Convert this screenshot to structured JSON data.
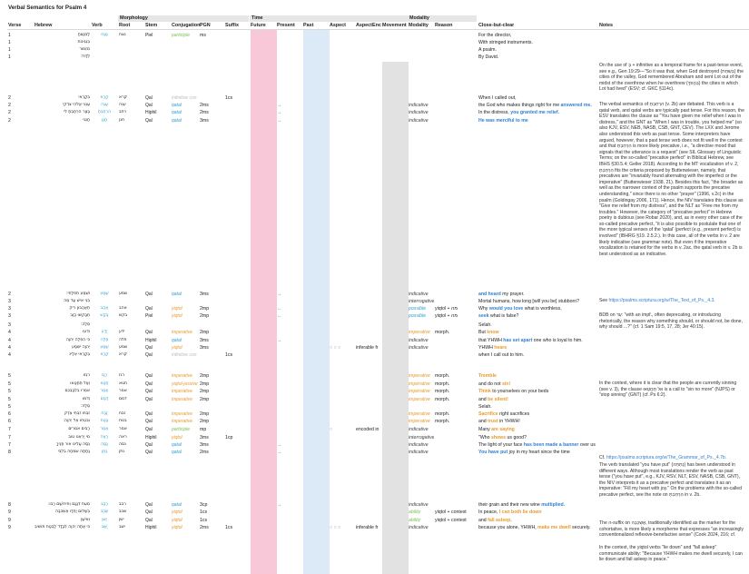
{
  "sheet": {
    "title": "Verbal Semantics for Psalm 4"
  },
  "groups": {
    "morphology": "Morphology",
    "time": "Time",
    "modality": "Modality"
  },
  "headers": {
    "verse": "Verse",
    "hebrew": "Hebrew",
    "verb": "Verb",
    "root": "Root",
    "stem": "Stem",
    "conjugation": "Conjugation",
    "pgn": "PGN",
    "suffix": "Suffix",
    "future": "Future",
    "present": "Present",
    "past": "Past",
    "aspect": "Aspect",
    "aspect_enc": "AspectEnc",
    "movement": "Movement",
    "modality": "Modality",
    "reason": "Reason",
    "close_but_clear": "Close-but-clear",
    "notes": "Notes"
  },
  "colors": {
    "future_col": "#f8c8d8",
    "past_col": "#dce9f7",
    "movement_col": "#e2e2e2",
    "accent_blue": "#2f7fd4",
    "accent_orange": "#e89a2b"
  },
  "rows": [
    {
      "verse": "1",
      "hebrew": "לַמְנַצֵּחַ",
      "verb": "נָצַח",
      "root": "נצח",
      "stem": "Piel",
      "conj": "participle",
      "pgn": "ms",
      "text": "For the director,"
    },
    {
      "verse": "1",
      "hebrew": "בִּנְגִינוֹת",
      "text": "With stringed instruments."
    },
    {
      "verse": "1",
      "hebrew": "מִזְמוֹר",
      "text": "A psalm."
    },
    {
      "verse": "1",
      "hebrew": "לְדָוִד׃",
      "text": "By David."
    },
    {
      "verse": "2",
      "hebrew": "בְּקָרְאִי",
      "verb": "קָרָא",
      "root": "קרא",
      "stem": "Qal",
      "conj": "infinitive con",
      "suffix": "1cs",
      "text": "When I called out,"
    },
    {
      "verse": "2",
      "hebrew": "עֲנֵנִי אֱלֹהֵי צִדְקִי",
      "verb": "עָנָה",
      "root": "ענה",
      "stem": "Qal",
      "conj": "qatal",
      "pgn": "2ms",
      "arrow": "→",
      "modality": "indicative",
      "text_pre": "the God who makes things right for me ",
      "text_hl": "answered me.",
      "hl": "blue"
    },
    {
      "verse": "2",
      "hebrew": "בַּצָּר הִרְחַבְתָּ לִּי",
      "verb": "הִרְחַבְתָּ",
      "root": "רחב",
      "stem": "Hiphil",
      "conj": "qatal",
      "pgn": "2ms",
      "arrow": "→",
      "modality": "indicative",
      "text_pre": "In the distress, ",
      "text_hl": "you granted me relief.",
      "hl": "blue"
    },
    {
      "verse": "2",
      "hebrew": "חָנֵּנִי",
      "verb": "חָנַן",
      "root": "חנן",
      "stem": "Qal",
      "conj": "qatal",
      "pgn": "3ms",
      "arrow": "→",
      "modality": "indicative",
      "text_pre": "",
      "text_hl": "He was merciful to me",
      "hl": "blue"
    },
    {
      "verse": "2",
      "hebrew": "וּשְׁמַע תְּפִלָּתִי׃",
      "verb": "שָׁמַע",
      "root": "שמע",
      "stem": "Qal",
      "conj": "qatal",
      "pgn": "3ms",
      "arrow": "→",
      "modality": "indicative",
      "text_pre": "",
      "text_hl": "and heard",
      "text_post": " my prayer.",
      "hl": "blue"
    },
    {
      "verse": "3",
      "hebrew": "בְּנֵי אִישׁ עַד מֶה",
      "modality": "interrogative",
      "text": "Mortal humans, how long [will you be] stubborn?"
    },
    {
      "verse": "3",
      "hebrew": "תֶּאֱהָבוּן רִיק",
      "verb": "אָהַב",
      "root": "אהב",
      "stem": "Qal",
      "conj": "yiqtol",
      "pgn": "2mp",
      "arrow": "←",
      "modality": "possible",
      "reason": "yiqtol + מה",
      "text_pre": "Why ",
      "text_hl": "would you love",
      "text_post": " what is worthless,",
      "hl": "blue"
    },
    {
      "verse": "3",
      "hebrew": "תְּבַקְשׁוּ כָזָב",
      "verb": "בָּקַשׁ",
      "root": "בקשׁ",
      "stem": "Piel",
      "conj": "yiqtol",
      "pgn": "2mp",
      "arrow": "←",
      "modality": "possible",
      "reason": "yiqtol + מה",
      "text_pre": "",
      "text_hl": "seek",
      "text_post": " what is false?",
      "hl": "blue"
    },
    {
      "verse": "3",
      "hebrew": "סֶלָה׃",
      "text": "Selah."
    },
    {
      "verse": "4",
      "hebrew": "וּדְעוּ",
      "verb": "יָדַע",
      "root": "ידע",
      "stem": "Qal",
      "conj": "imperative",
      "pgn": "2mp",
      "modality": "imperative",
      "reason": "morph.",
      "text_pre": "But ",
      "text_hl": "know",
      "hl": "orange"
    },
    {
      "verse": "4",
      "hebrew": "כִּי הִפְלָה יְהוָה",
      "verb": "פָּלָה",
      "root": "פלה",
      "stem": "Hiphil",
      "conj": "qatal",
      "pgn": "3ms",
      "arrow": "→",
      "modality": "indicative",
      "text_pre": "that YHWH ",
      "text_hl": "has set apart",
      "text_post": " one who is loyal to him.",
      "hl": "blue"
    },
    {
      "verse": "4",
      "hebrew": "יְהוָה יִשְׁמַע",
      "verb": "שָׁמַע",
      "root": "שמע",
      "stem": "Qal",
      "conj": "yiqtol",
      "pgn": "3ms",
      "aspect": "○ ○ ○",
      "aspe": "inferable fr",
      "modality": "indicative",
      "text_pre": "YHWH ",
      "text_hl": "hears",
      "hl": "orange"
    },
    {
      "verse": "4",
      "hebrew": "בְּקָרְאִי אֵלָיו׃",
      "verb": "קָרָא",
      "root": "קרא",
      "stem": "Qal",
      "conj": "infinitive con",
      "suffix": "1cs",
      "text": "when I call out to him."
    },
    {
      "verse": "5",
      "hebrew": "רִגְזוּ",
      "verb": "רָגַז",
      "root": "רגז",
      "stem": "Qal",
      "conj": "imperative",
      "pgn": "2mp",
      "modality": "imperative",
      "reason": "morph.",
      "text_pre": "",
      "text_hl": "Tremble",
      "hl": "orange"
    },
    {
      "verse": "5",
      "hebrew": "וְאַל תֶּחֱטָאוּ",
      "verb": "חָטָא",
      "root": "חטא",
      "stem": "Qal",
      "conj": "yiqtol-jussive",
      "pgn": "2mp",
      "modality": "imperative",
      "reason": "morph.",
      "text_pre": "and do not ",
      "text_hl": "sin!",
      "hl": "orange"
    },
    {
      "verse": "5",
      "hebrew": "אִמְרוּ בִלְבַבְכֶם",
      "verb": "אָמַר",
      "root": "אמר",
      "stem": "Qal",
      "conj": "imperative",
      "pgn": "2mp",
      "modality": "imperative",
      "reason": "morph.",
      "text_pre": "",
      "text_hl": "Think",
      "text_post": " to yourselves on your beds",
      "hl": "orange"
    },
    {
      "verse": "5",
      "hebrew": "וְדֹמּוּ",
      "verb": "דָּמַם",
      "root": "דמם",
      "stem": "Qal",
      "conj": "imperative",
      "pgn": "2mp",
      "modality": "imperative",
      "reason": "morph.",
      "text_pre": "and ",
      "text_hl": "be silent!",
      "hl": "orange"
    },
    {
      "verse": "5",
      "hebrew": "סֶלָה׃",
      "text": "Selah."
    },
    {
      "verse": "6",
      "hebrew": "זִבְחוּ זִבְחֵי צֶדֶק",
      "verb": "זָבַח",
      "root": "זבח",
      "stem": "Qal",
      "conj": "imperative",
      "pgn": "2mp",
      "modality": "imperative",
      "reason": "morph.",
      "text_pre": "",
      "text_hl": "Sacrifice",
      "text_post": " right sacrifices",
      "hl": "orange"
    },
    {
      "verse": "6",
      "hebrew": "וּבִטְחוּ אֶל יְהוָה׃",
      "verb": "בָּטַח",
      "root": "בטח",
      "stem": "Qal",
      "conj": "imperative",
      "pgn": "2mp",
      "modality": "imperative",
      "reason": "morph.",
      "text_pre": "and ",
      "text_hl": "trust",
      "text_post": " in YHWH!",
      "hl": "orange"
    },
    {
      "verse": "7",
      "hebrew": "רַבִּים אֹמְרִים",
      "verb": "אָמַר",
      "root": "אמר",
      "stem": "Qal",
      "conj": "participle",
      "pgn": "mp",
      "aspect": "○",
      "aspe": "encoded in",
      "modality": "indicative",
      "text_pre": "Many ",
      "text_hl": "are saying",
      "hl": "orange"
    },
    {
      "verse": "7",
      "hebrew": "מִי יַרְאֵנוּ טוֹב",
      "verb": "רָאָה",
      "root": "ראה",
      "stem": "Hiphil",
      "conj": "yiqtol",
      "pgn": "3ms",
      "suffix": "1cp",
      "modality": "interrogative",
      "text_pre": "\"Who ",
      "text_hl": "shows",
      "text_post": " us good?",
      "hl": "orange"
    },
    {
      "verse": "7",
      "hebrew": "נְסָה עָלֵינוּ אוֹר פָּנֶיךָ",
      "verb": "נָסָה",
      "root": "נסה",
      "stem": "Qal",
      "conj": "qatal",
      "pgn": "3ms",
      "arrow": "→",
      "modality": "indicative",
      "text_pre": "The light of your face ",
      "text_hl": "has been made a banner",
      "text_post": " over us",
      "hl": "blue"
    },
    {
      "verse": "8",
      "hebrew": "נָתַתָּה שִׂמְחָה בְלִבִּי",
      "verb": "נָתַן",
      "root": "נתן",
      "stem": "Qal",
      "conj": "qatal",
      "pgn": "2ms",
      "arrow": "→",
      "modality": "indicative",
      "text_pre": "",
      "text_hl": "You have put",
      "text_post": " joy in my heart since the time",
      "hl": "blue"
    },
    {
      "verse": "8",
      "hebrew": "מֵעֵת דְּגָנָם וְתִירוֹשָׁם רָבּוּ׃",
      "verb": "רָבַב",
      "root": "רבב",
      "stem": "Qal",
      "conj": "qatal",
      "pgn": "3cp",
      "arrow": "→",
      "modality": "indicative",
      "text_pre": "their grain and their new wine ",
      "text_hl": "multiplied.",
      "hl": "blue"
    },
    {
      "verse": "9",
      "hebrew": "בְּשָׁלוֹם יַחְדָּו אֶשְׁכְּבָה",
      "verb": "שָׁכַב",
      "root": "שכב",
      "stem": "Qal",
      "conj": "yiqtol",
      "pgn": "1cs",
      "modality": "ability",
      "reason": "yiqtol + context",
      "text_pre": "In peace, ",
      "text_hl": "I can both lie down",
      "hl": "orange"
    },
    {
      "verse": "9",
      "hebrew": "וְאִישָׁן",
      "verb": "יָשֵׁן",
      "root": "ישן",
      "stem": "Qal",
      "conj": "yiqtol",
      "pgn": "1cs",
      "modality": "ability",
      "reason": "yiqtol + context",
      "text_pre": "and ",
      "text_hl": "fall asleep,",
      "hl": "orange"
    },
    {
      "verse": "9",
      "hebrew": "כִּי אַתָּה יְהוָה לְבָדָד לָבֶטַח תּוֹשִׁיבֵנִי׃",
      "verb": "יָשַׁב",
      "root": "ישב",
      "stem": "Hiphil",
      "conj": "yiqtol",
      "pgn": "2ms",
      "suffix": "1cs",
      "aspect": "○ ○ ○",
      "aspe": "inferable fr",
      "modality": "indicative",
      "text_pre": "because you alone, YHWH, ",
      "text_hl": "make me dwell",
      "text_post": " securely.",
      "hl": "orange"
    }
  ],
  "notes": {
    "n1": "On the use of בְּ + infinitive as a temporal frame for a past-tense event, see e.g., Gen 19:29—\"So it was that, when God destroyed (בְּשַׁחֵת) the cities of the valley, God remembered Abraham and sent Lot out of the midst of the overthrow when he overthrew (בַּהֲפֹךְ) the cities in which Lot had lived\" (ESV; cf. GKC §114c).",
    "n2": "The verbal semantics of הִרְחַבְתָּ (v. 2b) are debated. This verb is a qatal verb, and qatal verbs are typically past tense. For this reason, the ESV translates the clause as \"You have given me relief when I was in distress,\" and the GNT as \"When I was in trouble, you helped me\" (so also KJV, ESV, NEB, NASB, CSB, GNT, CEV). The LXX and Jerome also understood this verb as past tense. Some interpreters have argued, however, that a past tense verb does not fit well in the context and that הִרְחַבְתָּ is more likely precative, i.e., \"a directive mood that signals that the utterance is a request\" (see SIL Glossary of Linguistic Terms; on the so-called \"precative perfect\" in Biblical Hebrew, see IBHS §30.5.4; Geller 2018). According to the MT vocalization of v. 2, הִרְחַבְתָּ fits the criteria proposed by Buttenwieser, namely, that precatives are \"invariably found alternating with the imperfect or the imperative\" (Buttenwieser 1938, 21). Besides this fact, \"the broader as well as the narrower context of the psalm supports the precative understanding,\" since there is no other \"prayer\" (1996, v.2c) in the psalm (Goldingay 2006, 171). Hence, the NIV translates this clause as \"Give me relief from my distress\", and the NLT as \"Free me from my troubles.\" However, the category of \"precative perfect\" in Hebrew poetry is dubious (see Robar 2020), and, as in every other case of the so-called precative perfect, \"it is also possible to postulate that one of the more typical senses of the 'qatal' (perfect (e.g., present perfect) is involved\" (IBHRG §19. 2.5.2.). In this case, all of the verbs in v. 2 are likely indicative (see grammar note). But even if the imperative vocalization is retained for the verbs in v. 2ac, the qatal verb in v. 2b is best understood as an indicative.",
    "n3_pre": "See ",
    "n3_link": "https://psalms.scriptura.org/w/The_Text_of_Ps._4.3.",
    "n4": "BDB on עַד: \"with an impf., often deprecating, or introducing rhetorically, the reason why something should, or should not, be done, why should ...?\" (cf. 1 Sam 19:5, 17, 28; Jer 40:15).",
    "n5": "In the context, where it is clear that the people are currently sinning (see v. 3), the clause אַל תֶּחֱטָאוּ is a call to \"sin no more\" (NJPS) or \"stop sinning\" (GNT) (cf. Ps 6:2).",
    "n6_pre": "Cf. ",
    "n6_link": "https://psalms.scriptura.org/w/The_Grammar_of_Ps._4.7b.",
    "n7": "The verb translated \"you have put\" (נָתַתָּה) has been understood in different ways. Although most translations render the verb as past tense (\"you have put\", e.g., KJV, RSV, NLT, ESV, NASB, CSB, GNT), the NIV interprets it as a precative perfect and translates it as an imperative: \"Fill my heart with joy.\" On the problems with the so-called precative perfect, see the note on הִרְחַבְתָּ in v. 2b.",
    "n8": "The ה-suffix on אֶשְׁכְּבָה, traditionally identified as the marker for the cohortative, is more likely a morpheme that expresses \"an increasingly conventionalized reflexive-benefactive sense\" (Cook 2024, 216; cf. Gentry 1998).",
    "n9": "In the context, the yiqtol verbs \"lie down\" and \"fall asleep\" communicate ability: \"Because YHWH makes me dwell securely, I can lie down and fall asleep in peace.\""
  }
}
